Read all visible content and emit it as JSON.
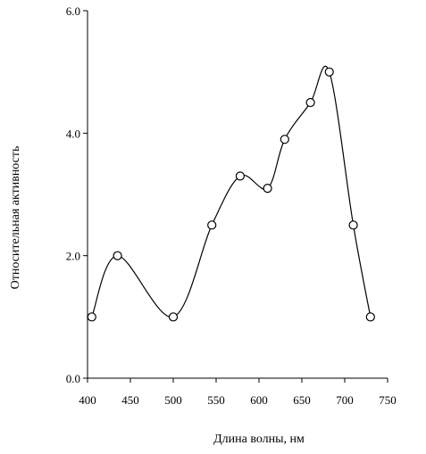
{
  "chart_data": {
    "type": "line",
    "title": "",
    "xlabel": "Длина волны, нм",
    "ylabel": "Относительная активность",
    "xlim": [
      400,
      750
    ],
    "ylim": [
      0.0,
      6.0
    ],
    "x_ticks": [
      "400",
      "450",
      "500",
      "550",
      "600",
      "650",
      "700",
      "750"
    ],
    "y_ticks": [
      "0.0",
      "2.0",
      "4.0",
      "6.0"
    ],
    "grid": false,
    "smooth": true,
    "marker": "open-circle",
    "series": [
      {
        "x": [
          405,
          435,
          500,
          545,
          578,
          610,
          630,
          660,
          682,
          710,
          730
        ],
        "y": [
          1.0,
          2.0,
          1.0,
          2.5,
          3.3,
          3.1,
          3.9,
          4.5,
          5.0,
          2.5,
          1.0
        ]
      }
    ]
  }
}
